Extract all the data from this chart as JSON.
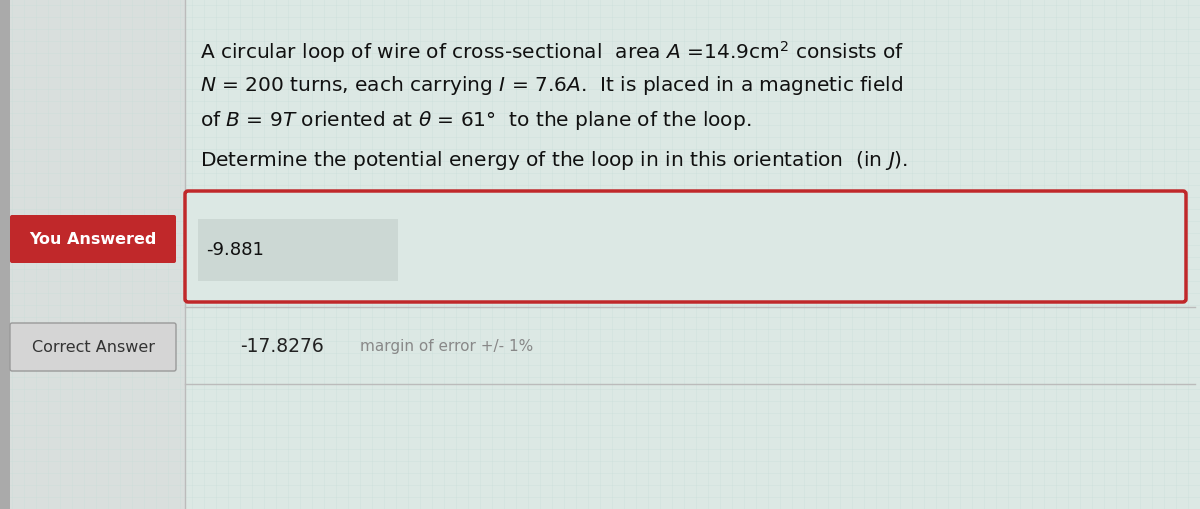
{
  "background_color": "#dce8e4",
  "left_strip_color": "#c5c5c5",
  "title_lines": [
    "A circular loop of wire of cross-sectional  area $A$ =14.9cm$^2$ consists of",
    "$N$ = 200 turns, each carrying $I$ = 7.6$A$.  It is placed in a magnetic field",
    "of $B$ = 9$T$ oriented at $\\theta$ = 61°  to the plane of the loop.",
    "Determine the potential energy of the loop in in this orientation  (in $J$)."
  ],
  "you_answered_label": "You Answered",
  "you_answered_bg": "#c0282a",
  "you_answered_text_color": "#ffffff",
  "answered_value": "-9.881",
  "answered_box_border": "#c0282a",
  "answered_box_bg": "#dce8e4",
  "answered_input_bg": "#ccd8d4",
  "correct_answer_label": "Correct Answer",
  "correct_answer_label_color": "#333333",
  "correct_answer_label_bg": "#d5d5d5",
  "correct_value": "-17.8276",
  "correct_margin": "margin of error +/- 1%",
  "correct_text_color": "#222222",
  "correct_margin_color": "#888888",
  "divider_color": "#bbbbbb",
  "font_size_title": 14.5,
  "font_size_labels": 11.5,
  "font_size_answer": 13,
  "font_size_correct": 13.5
}
